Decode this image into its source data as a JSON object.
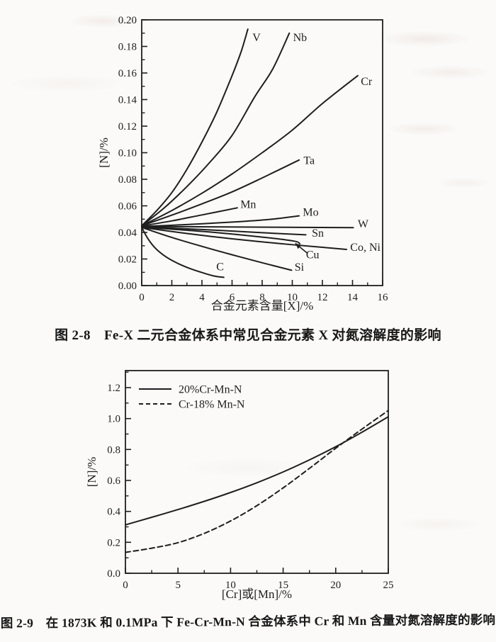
{
  "page": {
    "background": "#fbfaf8",
    "ink": "#1e1e1e"
  },
  "figures": [
    {
      "caption": "图 2-8　Fe-X 二元合金体系中常见合金元素 X 对氮溶解度的影响"
    },
    {
      "caption": "图 2-9　在 1873K 和 0.1MPa 下 Fe-Cr-Mn-N 合金体系中 Cr 和 Mn 含量对氮溶解度的影响"
    }
  ],
  "chart_data": [
    {
      "type": "line",
      "title": "",
      "xlabel": "合金元素含量[X]/%",
      "ylabel": "[N]/%",
      "xlim": [
        0,
        16
      ],
      "ylim": [
        0,
        0.2
      ],
      "xticks": [
        0,
        2,
        4,
        6,
        8,
        10,
        12,
        14,
        16
      ],
      "xtick_decimals": 0,
      "x_minor_step": 1,
      "yticks": [
        0.0,
        0.02,
        0.04,
        0.06,
        0.08,
        0.1,
        0.12,
        0.14,
        0.16,
        0.18,
        0.2
      ],
      "ytick_decimals": 2,
      "y_minor_step": 0.01,
      "grid": false,
      "legend": null,
      "series": [
        {
          "name": "V",
          "dashed": false,
          "x": [
            0,
            1,
            2,
            3,
            4,
            5,
            6,
            6.6,
            7.05
          ],
          "y": [
            0.045,
            0.0565,
            0.07,
            0.0875,
            0.108,
            0.131,
            0.158,
            0.176,
            0.193
          ],
          "label": {
            "text": "V",
            "x": 7.35,
            "y": 0.184
          }
        },
        {
          "name": "Nb",
          "dashed": false,
          "x": [
            0,
            1.5,
            3,
            4.5,
            6,
            7.5,
            8.7,
            9.8
          ],
          "y": [
            0.045,
            0.0585,
            0.0745,
            0.0925,
            0.113,
            0.142,
            0.163,
            0.19
          ],
          "label": {
            "text": "Nb",
            "x": 10.05,
            "y": 0.184
          }
        },
        {
          "name": "Cr",
          "dashed": false,
          "x": [
            0,
            2,
            4,
            6,
            8,
            10,
            12,
            14.35
          ],
          "y": [
            0.045,
            0.0565,
            0.0695,
            0.084,
            0.1,
            0.117,
            0.137,
            0.158
          ],
          "label": {
            "text": "Cr",
            "x": 14.55,
            "y": 0.151
          }
        },
        {
          "name": "Ta",
          "dashed": false,
          "x": [
            0,
            2,
            4,
            6,
            8,
            10.45
          ],
          "y": [
            0.045,
            0.053,
            0.0615,
            0.0705,
            0.081,
            0.0945
          ],
          "label": {
            "text": "Ta",
            "x": 10.75,
            "y": 0.0915
          }
        },
        {
          "name": "Mn",
          "dashed": false,
          "x": [
            0,
            2,
            4,
            6.35
          ],
          "y": [
            0.0448,
            0.0487,
            0.0532,
            0.0585
          ],
          "label": {
            "text": "Mn",
            "x": 6.55,
            "y": 0.0585
          }
        },
        {
          "name": "Mo",
          "dashed": false,
          "x": [
            0,
            3,
            6,
            8.5,
            10.45
          ],
          "y": [
            0.0445,
            0.0459,
            0.0478,
            0.0498,
            0.0525
          ],
          "label": {
            "text": "Mo",
            "x": 10.7,
            "y": 0.0525
          }
        },
        {
          "name": "W",
          "dashed": false,
          "x": [
            0,
            14.05
          ],
          "y": [
            0.0445,
            0.0436
          ],
          "label": {
            "text": "W",
            "x": 14.35,
            "y": 0.0437
          }
        },
        {
          "name": "Sn",
          "dashed": false,
          "x": [
            0,
            4,
            8,
            10.9
          ],
          "y": [
            0.0442,
            0.0422,
            0.0398,
            0.0382
          ],
          "label": {
            "text": "Sn",
            "x": 11.3,
            "y": 0.0368
          }
        },
        {
          "name": "Cu",
          "dashed": false,
          "x": [
            0,
            4,
            8,
            10.1,
            10.5
          ],
          "y": [
            0.044,
            0.0408,
            0.0365,
            0.0335,
            0.0316
          ],
          "label": null
        },
        {
          "name": "Co, Ni",
          "dashed": false,
          "x": [
            0,
            3,
            6,
            9,
            12,
            13.6
          ],
          "y": [
            0.0438,
            0.0392,
            0.0352,
            0.0318,
            0.0288,
            0.0272
          ],
          "label": {
            "text": "Co, Ni",
            "x": 13.85,
            "y": 0.0262
          }
        },
        {
          "name": "Si",
          "dashed": false,
          "x": [
            0,
            2,
            4,
            6,
            8,
            9.95
          ],
          "y": [
            0.0438,
            0.0362,
            0.0295,
            0.0232,
            0.0172,
            0.0115
          ],
          "label": {
            "text": "Si",
            "x": 10.15,
            "y": 0.0112
          }
        },
        {
          "name": "C",
          "dashed": false,
          "x": [
            0,
            0.4,
            0.9,
            1.5,
            2.2,
            3,
            4,
            4.8,
            5.45
          ],
          "y": [
            0.0438,
            0.0355,
            0.0282,
            0.0225,
            0.0178,
            0.0137,
            0.0098,
            0.0072,
            0.0062
          ],
          "label": {
            "text": "C",
            "x": 4.95,
            "y": 0.0115
          }
        }
      ],
      "annotations": [
        {
          "text": "Cu",
          "text_x": 11.35,
          "text_y": 0.0205,
          "arrow_from": [
            11.0,
            0.0243
          ],
          "arrow_to": [
            10.2,
            0.0318
          ]
        }
      ]
    },
    {
      "type": "line",
      "title": "",
      "xlabel": "[Cr]或[Mn]/%",
      "ylabel": "[N]/%",
      "xlim": [
        0,
        25
      ],
      "ylim": [
        0,
        1.31
      ],
      "xticks": [
        0,
        5,
        10,
        15,
        20,
        25
      ],
      "xtick_decimals": 0,
      "x_minor_step": 2.5,
      "yticks": [
        0.0,
        0.2,
        0.4,
        0.6,
        0.8,
        1.0,
        1.2
      ],
      "ytick_decimals": 1,
      "y_minor_step": 0.1,
      "grid": false,
      "legend": {
        "position": "top-left",
        "entries": [
          {
            "label": "20%Cr-Mn-N",
            "dashed": false
          },
          {
            "label": "Cr-18% Mn-N",
            "dashed": true
          }
        ]
      },
      "series": [
        {
          "name": "20%Cr-Mn-N",
          "dashed": false,
          "x": [
            0,
            2.5,
            5,
            7.5,
            10,
            12.5,
            15,
            17.5,
            20,
            22.5,
            25
          ],
          "y": [
            0.313,
            0.362,
            0.412,
            0.465,
            0.522,
            0.585,
            0.655,
            0.733,
            0.818,
            0.912,
            1.012
          ],
          "label": null
        },
        {
          "name": "Cr-18% Mn-N",
          "dashed": true,
          "x": [
            0,
            2.5,
            5,
            7.5,
            10,
            12.5,
            15,
            17.5,
            20,
            22.5,
            25
          ],
          "y": [
            0.135,
            0.162,
            0.198,
            0.258,
            0.338,
            0.437,
            0.552,
            0.678,
            0.808,
            0.932,
            1.052
          ],
          "label": null
        }
      ],
      "annotations": []
    }
  ]
}
